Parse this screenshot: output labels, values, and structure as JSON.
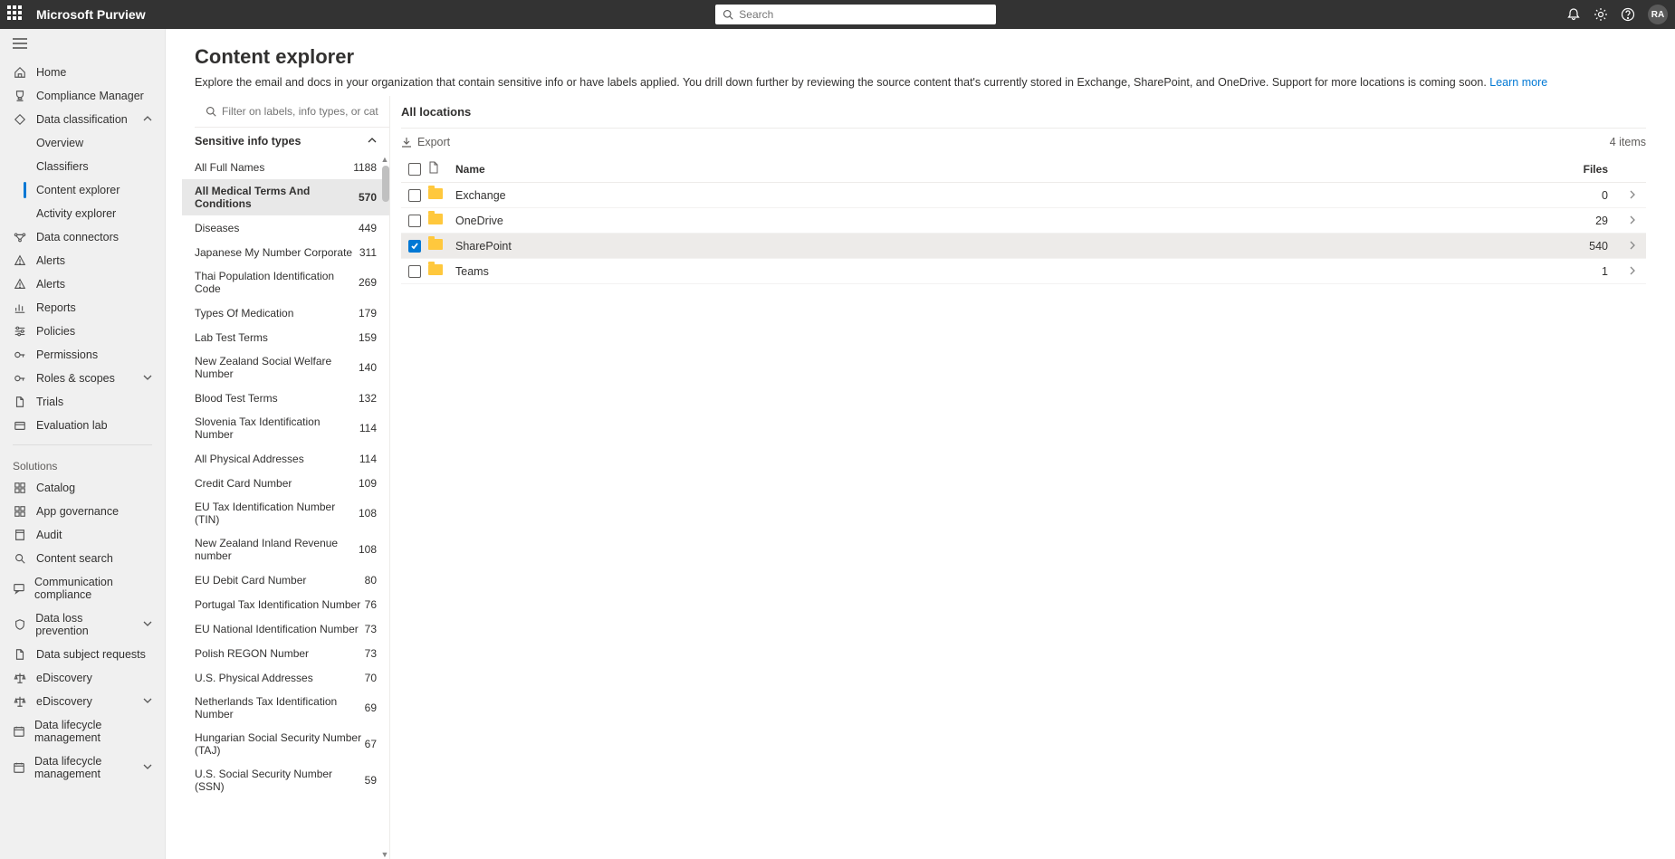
{
  "topbar": {
    "brand": "Microsoft Purview",
    "search_placeholder": "Search",
    "avatar": "RA"
  },
  "sidebar": {
    "items": [
      {
        "id": "home",
        "label": "Home",
        "icon": "home"
      },
      {
        "id": "compmgr",
        "label": "Compliance Manager",
        "icon": "trophy"
      },
      {
        "id": "dataclass",
        "label": "Data classification",
        "icon": "diamond",
        "expandable": true,
        "expanded": true
      },
      {
        "id": "overview",
        "label": "Overview",
        "sub": true
      },
      {
        "id": "classifiers",
        "label": "Classifiers",
        "sub": true
      },
      {
        "id": "contentexp",
        "label": "Content explorer",
        "sub": true,
        "active": true
      },
      {
        "id": "activityexp",
        "label": "Activity explorer",
        "sub": true
      },
      {
        "id": "dataconn",
        "label": "Data connectors",
        "icon": "flow"
      },
      {
        "id": "alerts1",
        "label": "Alerts",
        "icon": "warn"
      },
      {
        "id": "alerts2",
        "label": "Alerts",
        "icon": "warn"
      },
      {
        "id": "reports",
        "label": "Reports",
        "icon": "chart"
      },
      {
        "id": "policies",
        "label": "Policies",
        "icon": "sliders"
      },
      {
        "id": "permissions",
        "label": "Permissions",
        "icon": "key"
      },
      {
        "id": "roles",
        "label": "Roles & scopes",
        "icon": "key",
        "expandable": true
      },
      {
        "id": "trials",
        "label": "Trials",
        "icon": "doc"
      },
      {
        "id": "evallab",
        "label": "Evaluation lab",
        "icon": "lab"
      }
    ],
    "solutions_header": "Solutions",
    "solutions": [
      {
        "id": "catalog",
        "label": "Catalog",
        "icon": "grid"
      },
      {
        "id": "appgov",
        "label": "App governance",
        "icon": "grid"
      },
      {
        "id": "audit",
        "label": "Audit",
        "icon": "book"
      },
      {
        "id": "contentsearch",
        "label": "Content search",
        "icon": "search"
      },
      {
        "id": "commcomp",
        "label": "Communication compliance",
        "icon": "comm"
      },
      {
        "id": "dlp",
        "label": "Data loss prevention",
        "icon": "shield",
        "expandable": true
      },
      {
        "id": "dsr",
        "label": "Data subject requests",
        "icon": "doc"
      },
      {
        "id": "edisc1",
        "label": "eDiscovery",
        "icon": "bal"
      },
      {
        "id": "edisc2",
        "label": "eDiscovery",
        "icon": "bal",
        "expandable": true
      },
      {
        "id": "dlm1",
        "label": "Data lifecycle management",
        "icon": "cal"
      },
      {
        "id": "dlm2",
        "label": "Data lifecycle management",
        "icon": "cal",
        "expandable": true
      }
    ]
  },
  "page": {
    "title": "Content explorer",
    "description": "Explore the email and docs in your organization that contain sensitive info or have labels applied. You drill down further by reviewing the source content that's currently stored in Exchange, SharePoint, and OneDrive. Support for more locations is coming soon. ",
    "learn_more": "Learn more"
  },
  "filter": {
    "placeholder": "Filter on labels, info types, or categories",
    "group_header": "Sensitive info types",
    "types": [
      {
        "name": "All Full Names",
        "count": "1188"
      },
      {
        "name": "All Medical Terms And Conditions",
        "count": "570",
        "selected": true
      },
      {
        "name": "Diseases",
        "count": "449"
      },
      {
        "name": "Japanese My Number Corporate",
        "count": "311"
      },
      {
        "name": "Thai Population Identification Code",
        "count": "269"
      },
      {
        "name": "Types Of Medication",
        "count": "179"
      },
      {
        "name": "Lab Test Terms",
        "count": "159"
      },
      {
        "name": "New Zealand Social Welfare Number",
        "count": "140"
      },
      {
        "name": "Blood Test Terms",
        "count": "132"
      },
      {
        "name": "Slovenia Tax Identification Number",
        "count": "114"
      },
      {
        "name": "All Physical Addresses",
        "count": "114"
      },
      {
        "name": "Credit Card Number",
        "count": "109"
      },
      {
        "name": "EU Tax Identification Number (TIN)",
        "count": "108"
      },
      {
        "name": "New Zealand Inland Revenue number",
        "count": "108"
      },
      {
        "name": "EU Debit Card Number",
        "count": "80"
      },
      {
        "name": "Portugal Tax Identification Number",
        "count": "76"
      },
      {
        "name": "EU National Identification Number",
        "count": "73"
      },
      {
        "name": "Polish REGON Number",
        "count": "73"
      },
      {
        "name": "U.S. Physical Addresses",
        "count": "70"
      },
      {
        "name": "Netherlands Tax Identification Number",
        "count": "69"
      },
      {
        "name": "Hungarian Social Security Number (TAJ)",
        "count": "67"
      },
      {
        "name": "U.S. Social Security Number (SSN)",
        "count": "59"
      }
    ]
  },
  "locations": {
    "header": "All locations",
    "export_label": "Export",
    "items_count": "4 items",
    "columns": {
      "name": "Name",
      "files": "Files"
    },
    "rows": [
      {
        "name": "Exchange",
        "files": "0"
      },
      {
        "name": "OneDrive",
        "files": "29"
      },
      {
        "name": "SharePoint",
        "files": "540",
        "selected": true
      },
      {
        "name": "Teams",
        "files": "1"
      }
    ]
  },
  "colors": {
    "topbar": "#333333",
    "sidebar_bg": "#f0f0f0",
    "accent": "#0078d4",
    "folder": "#ffc83d",
    "border": "#edebe9"
  }
}
